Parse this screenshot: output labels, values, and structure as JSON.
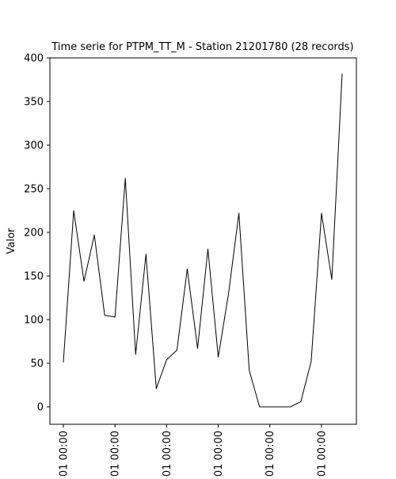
{
  "chart_data": {
    "type": "line",
    "title": "Time serie for PTPM_TT_M - Station 21201780 (28 records)",
    "xlabel": "",
    "ylabel": "Valor",
    "ylim": [
      -20,
      400
    ],
    "yticks": [
      0,
      50,
      100,
      150,
      200,
      250,
      300,
      350,
      400
    ],
    "x_tick_labels": [
      "01 00:00",
      "01 00:00",
      "01 00:00",
      "01 00:00",
      "01 00:00",
      "01 00:00"
    ],
    "grid": false,
    "legend": "none",
    "line_color": "#000000",
    "values": [
      51,
      225,
      144,
      197,
      105,
      103,
      262,
      60,
      175,
      21,
      54,
      65,
      158,
      67,
      181,
      57,
      130,
      222,
      42,
      0,
      0,
      0,
      0,
      6,
      52,
      222,
      146,
      382
    ]
  }
}
